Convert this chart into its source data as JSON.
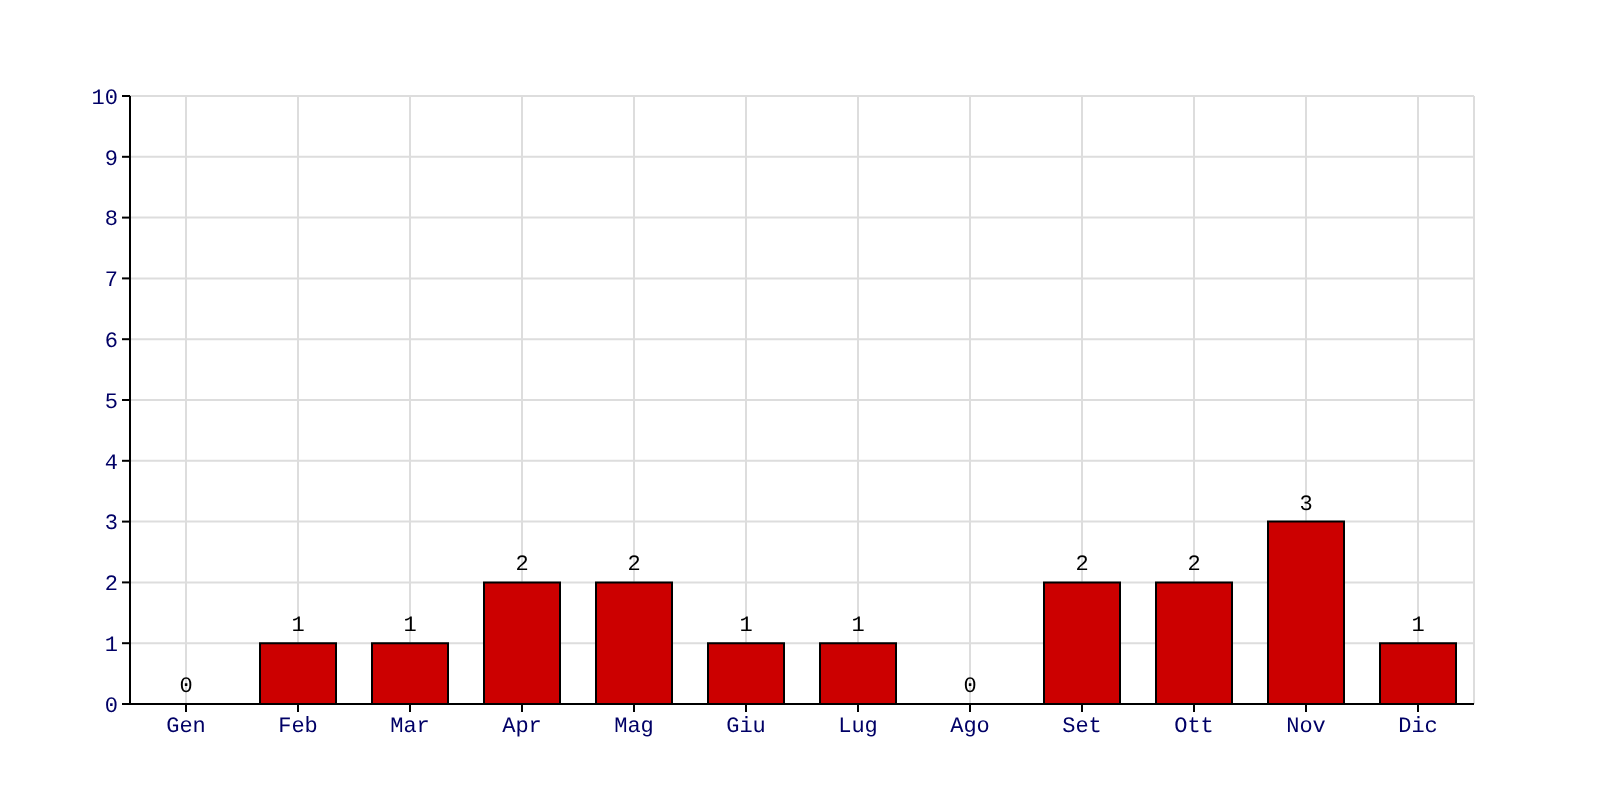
{
  "chart_data": {
    "type": "bar",
    "categories": [
      "Gen",
      "Feb",
      "Mar",
      "Apr",
      "Mag",
      "Giu",
      "Lug",
      "Ago",
      "Set",
      "Ott",
      "Nov",
      "Dic"
    ],
    "values": [
      0,
      1,
      1,
      2,
      2,
      1,
      1,
      0,
      2,
      2,
      3,
      1
    ],
    "color": "#cc0000",
    "ylim": [
      0,
      10
    ],
    "yticks": [
      0,
      1,
      2,
      3,
      4,
      5,
      6,
      7,
      8,
      9,
      10
    ],
    "grid": true,
    "data_labels": true
  }
}
